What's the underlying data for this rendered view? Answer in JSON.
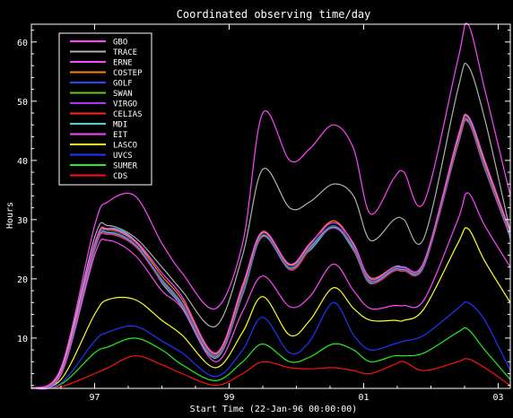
{
  "chart_data": {
    "type": "area",
    "title": "Coordinated observing time/day",
    "xlabel": "Start Time (22-Jan-96 00:00:00)",
    "ylabel": "Hours",
    "xlim": [
      1996.06,
      2003.18
    ],
    "ylim": [
      1.5,
      63
    ],
    "x_ticks": [
      {
        "value": 1997,
        "label": "97"
      },
      {
        "value": 1999,
        "label": "99"
      },
      {
        "value": 2001,
        "label": "01"
      },
      {
        "value": 2003,
        "label": "03"
      }
    ],
    "y_ticks": [
      {
        "value": 10,
        "label": "10"
      },
      {
        "value": 20,
        "label": "20"
      },
      {
        "value": 30,
        "label": "30"
      },
      {
        "value": 40,
        "label": "40"
      },
      {
        "value": 50,
        "label": "50"
      },
      {
        "value": 60,
        "label": "60"
      }
    ],
    "legend_position": "top-left",
    "x": [
      1996.06,
      1996.5,
      1997.0,
      1997.2,
      1997.6,
      1998.0,
      1998.3,
      1998.8,
      1999.2,
      1999.5,
      1999.9,
      2000.2,
      2000.55,
      2000.85,
      2001.1,
      2001.45,
      2001.6,
      2001.9,
      2002.4,
      2002.55,
      2002.8,
      2003.18
    ],
    "series": [
      {
        "name": "GBO",
        "color": "#ff44ff",
        "values": [
          1.5,
          5,
          29,
          33,
          34,
          26,
          21,
          15,
          26,
          48,
          40,
          42,
          46,
          42,
          31,
          37,
          38,
          33,
          57,
          63,
          52,
          34
        ]
      },
      {
        "name": "TRACE",
        "color": "#b0b0b0",
        "values": [
          1.5,
          4.8,
          27,
          29,
          27,
          22,
          18,
          12,
          24,
          38.5,
          32,
          33,
          36,
          34,
          26.5,
          30,
          30,
          27,
          52,
          56,
          47,
          28
        ]
      },
      {
        "name": "ERNE",
        "color": "#ff44ff",
        "values": [
          1.5,
          4.6,
          26,
          28.5,
          26.5,
          21,
          17,
          7.5,
          19,
          28,
          22.5,
          26,
          29.5,
          26,
          20,
          22,
          22,
          23,
          44,
          47.5,
          40,
          28
        ]
      },
      {
        "name": "COSTEP",
        "color": "#ff8800",
        "values": [
          1.5,
          4.5,
          25.8,
          28.3,
          26.3,
          20.5,
          16.5,
          7.3,
          18.5,
          27.8,
          22.3,
          25.8,
          29.8,
          25.8,
          20.2,
          22,
          22,
          23,
          43.5,
          47.3,
          39.5,
          27.8
        ]
      },
      {
        "name": "GOLF",
        "color": "#3344ff",
        "values": [
          1.5,
          4.4,
          25.5,
          28,
          26,
          20,
          16,
          7.1,
          18,
          27.5,
          22,
          25.5,
          29,
          25.5,
          19.8,
          21.8,
          21.8,
          22.8,
          43,
          47,
          39,
          27.5
        ]
      },
      {
        "name": "SWAN",
        "color": "#66cc22",
        "values": [
          1.5,
          4.3,
          25.3,
          27.8,
          25.8,
          19.8,
          15.8,
          7,
          17.8,
          27.3,
          21.8,
          25.3,
          28.8,
          25.3,
          19.6,
          21.6,
          21.6,
          22.6,
          42.8,
          46.8,
          38.8,
          27.3
        ]
      },
      {
        "name": "VIRGO",
        "color": "#aa33ff",
        "values": [
          1.5,
          4.2,
          25.1,
          27.6,
          25.6,
          19.6,
          15.6,
          6.9,
          17.6,
          27.1,
          21.6,
          25.1,
          28.6,
          25.1,
          19.4,
          21.4,
          21.4,
          22.4,
          42.6,
          46.6,
          38.6,
          27.1
        ]
      },
      {
        "name": "CELIAS",
        "color": "#ff2222",
        "values": [
          1.5,
          4.1,
          25,
          27.5,
          25.5,
          19.5,
          15.5,
          6.8,
          17.5,
          28,
          21.5,
          25,
          29.8,
          25,
          19.3,
          21.3,
          21.3,
          22.3,
          42.5,
          46.5,
          38.5,
          27
        ]
      },
      {
        "name": "MDI",
        "color": "#33dddd",
        "values": [
          1.5,
          4,
          24.8,
          28.5,
          26.5,
          19.3,
          15.3,
          6.6,
          17.3,
          27.2,
          22.5,
          24.8,
          28.7,
          24.8,
          19.2,
          22,
          22,
          22.2,
          43.5,
          47.5,
          40,
          26.8
        ]
      },
      {
        "name": "EIT",
        "color": "#ff44ff",
        "values": [
          1.5,
          3.8,
          24,
          26.5,
          24,
          18,
          15,
          6,
          14.5,
          20.5,
          15.3,
          17,
          22.5,
          18,
          15,
          15.5,
          15.5,
          16.5,
          30,
          34.5,
          29,
          22
        ]
      },
      {
        "name": "LASCO",
        "color": "#ffff22",
        "values": [
          1.5,
          3,
          14,
          16.5,
          16.5,
          13,
          10.5,
          5,
          11,
          17,
          10.5,
          13,
          18.5,
          15,
          13,
          13,
          13,
          15,
          26,
          28.5,
          23,
          16
        ]
      },
      {
        "name": "UVCS",
        "color": "#2233ff",
        "values": [
          1.5,
          2.4,
          9.5,
          11,
          12,
          9.5,
          7.5,
          3.5,
          8,
          13.5,
          7.5,
          9.5,
          16,
          10.5,
          8,
          9,
          9.5,
          10.5,
          15,
          16,
          13,
          4.5
        ]
      },
      {
        "name": "SUMER",
        "color": "#22ee22",
        "values": [
          1.5,
          2.2,
          7.5,
          8.5,
          10,
          8,
          5.5,
          2.8,
          6,
          9,
          6,
          6.8,
          9,
          8,
          6,
          7,
          7,
          7.5,
          11,
          11.5,
          8,
          3
        ]
      },
      {
        "name": "CDS",
        "color": "#ff1111",
        "values": [
          1.5,
          1.8,
          4,
          5,
          7,
          5.5,
          4,
          2,
          4,
          6,
          5,
          4.8,
          5,
          4.5,
          4,
          5.5,
          6,
          4.5,
          6,
          6.5,
          5,
          2
        ]
      }
    ]
  }
}
